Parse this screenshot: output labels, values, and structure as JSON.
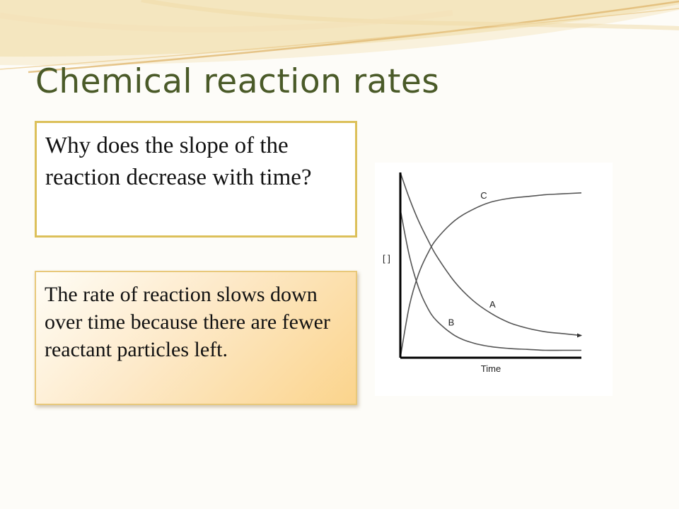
{
  "slide": {
    "title": "Chemical reaction rates",
    "question": "Why does the slope of the reaction decrease with time?",
    "answer": "The rate of reaction slows down over time because there are fewer reactant particles left.",
    "colors": {
      "title": "#4a5a28",
      "question_border": "#dcc05a",
      "answer_gradient_end": "#fbd48c",
      "swoosh": "#e9c98a"
    }
  },
  "chart_data": {
    "type": "line",
    "xlabel": "Time",
    "ylabel": "[ ]",
    "grid": false,
    "legend": "none",
    "x": [
      0,
      0.05,
      0.1,
      0.15,
      0.2,
      0.3,
      0.4,
      0.5,
      0.6,
      0.7,
      0.8,
      0.9,
      1.0
    ],
    "series": [
      {
        "name": "A",
        "values": [
          100,
          86,
          74,
          64,
          55,
          41,
          31,
          24,
          19,
          16,
          14,
          13,
          12
        ]
      },
      {
        "name": "B",
        "values": [
          80,
          55,
          38,
          27,
          20,
          12,
          8,
          6,
          5,
          4.5,
          4,
          4,
          4
        ]
      },
      {
        "name": "C",
        "values": [
          0,
          28,
          45,
          56,
          64,
          74,
          80,
          84,
          86,
          87,
          88,
          88.5,
          89
        ]
      }
    ]
  }
}
